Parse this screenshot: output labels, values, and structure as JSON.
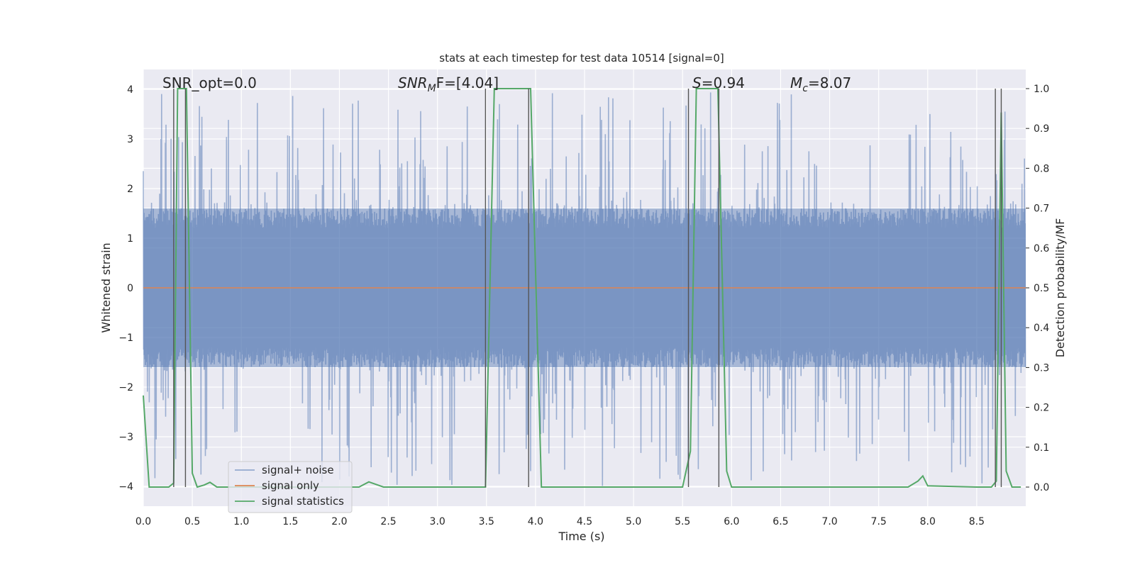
{
  "chart_data": {
    "type": "line",
    "title": "stats at each timestep for test data 10514 [signal=0]",
    "xlabel": "Time (s)",
    "ylabel": "Whitened strain",
    "y2label": "Detection probability/MF",
    "xlim": [
      0.0,
      9.0
    ],
    "ylim": [
      -4.4,
      4.4
    ],
    "y2lim": [
      -0.048,
      1.048
    ],
    "xticks": [
      "0.0",
      "0.5",
      "1.0",
      "1.5",
      "2.0",
      "2.5",
      "3.0",
      "3.5",
      "4.0",
      "4.5",
      "5.0",
      "5.5",
      "6.0",
      "6.5",
      "7.0",
      "7.5",
      "8.0",
      "8.5"
    ],
    "yticks": [
      "−4",
      "−3",
      "−2",
      "−1",
      "0",
      "1",
      "2",
      "3",
      "4"
    ],
    "y2ticks": [
      "0.0",
      "0.1",
      "0.2",
      "0.3",
      "0.4",
      "0.5",
      "0.6",
      "0.7",
      "0.8",
      "0.9",
      "1.0"
    ],
    "grid": true,
    "legend_position": "lower-left",
    "colors": {
      "background": "#eaeaf2",
      "grid": "#ffffff",
      "noise": "#4c72b0",
      "signal": "#dd8452",
      "stat": "#55a868",
      "vline": "#555555"
    },
    "annotations": {
      "snr_opt": "SNR_opt=0.0",
      "snr_mf_label": "SNR",
      "snr_mf_sub": "M",
      "snr_mf_tail": "F=[4.04]",
      "s_label": "S",
      "s_value": "=0.94",
      "mc_label": "M",
      "mc_sub": "c",
      "mc_value": "=8.07"
    },
    "series": [
      {
        "name": "signal+ noise",
        "noise_envelope": 1.6
      },
      {
        "name": "signal only",
        "values": [
          0
        ]
      },
      {
        "name": "signal statistics",
        "axis": "right",
        "x": [
          0.0,
          0.06,
          0.16,
          0.26,
          0.31,
          0.35,
          0.4,
          0.44,
          0.5,
          0.55,
          0.62,
          0.68,
          0.75,
          0.85,
          1.0,
          1.5,
          2.0,
          2.2,
          2.3,
          2.45,
          3.0,
          3.49,
          3.58,
          3.95,
          4.06,
          4.5,
          5.0,
          5.5,
          5.58,
          5.64,
          5.86,
          5.95,
          6.0,
          6.5,
          7.0,
          7.5,
          7.8,
          7.9,
          7.95,
          8.0,
          8.5,
          8.65,
          8.7,
          8.75,
          8.8,
          8.86,
          8.95
        ],
        "values": [
          0.23,
          0.0,
          0.0,
          0.0,
          0.01,
          1.0,
          1.0,
          1.0,
          0.035,
          0.0,
          0.005,
          0.012,
          0.0,
          0.0,
          0.0,
          0.0,
          0.0,
          0.0,
          0.013,
          0.0,
          0.0,
          0.0,
          1.0,
          1.0,
          0.0,
          0.0,
          0.0,
          0.0,
          0.09,
          1.0,
          1.0,
          0.04,
          0.0,
          0.0,
          0.0,
          0.0,
          0.0,
          0.015,
          0.028,
          0.003,
          0.0,
          0.0,
          0.015,
          0.94,
          0.04,
          0.0,
          0.0
        ]
      }
    ],
    "vertical_lines": [
      0.31,
      0.43,
      3.49,
      3.93,
      5.56,
      5.87,
      8.69,
      8.75
    ]
  }
}
